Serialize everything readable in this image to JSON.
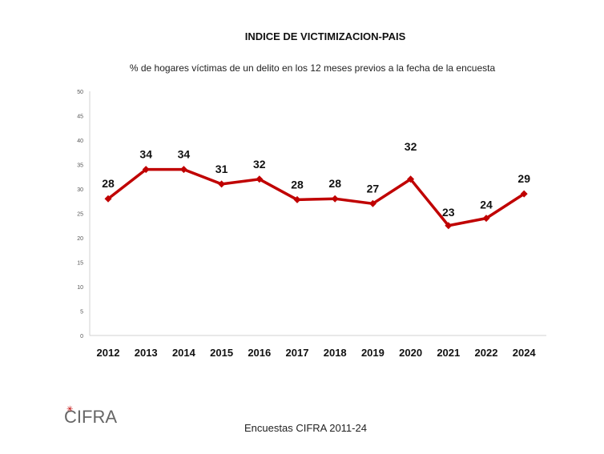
{
  "chart_data": {
    "type": "line",
    "title": "INDICE DE VICTIMIZACION-PAIS",
    "subtitle": "% de hogares víctimas de un delito en los 12 meses previos a la fecha de la encuesta",
    "categories": [
      "2012",
      "2013",
      "2014",
      "2015",
      "2016",
      "2017",
      "2018",
      "2019",
      "2020",
      "2021",
      "2022",
      "2024"
    ],
    "series": [
      {
        "values": [
          28,
          34,
          34,
          31,
          32,
          28,
          28,
          27,
          32,
          23,
          24,
          29
        ]
      }
    ],
    "plotted_values": [
      28,
      34,
      34,
      31,
      32,
      27.8,
      28,
      27,
      32,
      22.5,
      24,
      29
    ],
    "ylim": [
      0,
      50
    ],
    "yticks": [
      "0",
      "5",
      "10",
      "15",
      "20",
      "25",
      "30",
      "35",
      "40",
      "45",
      "50"
    ],
    "xlabel": "",
    "ylabel": "",
    "grid": false,
    "colors": {
      "series": "#c00000",
      "axis": "#d0d0d0",
      "labels": "#111111"
    }
  },
  "footer": {
    "source": "Encuestas CIFRA 2011-24",
    "logo_text": "CIFRA"
  }
}
